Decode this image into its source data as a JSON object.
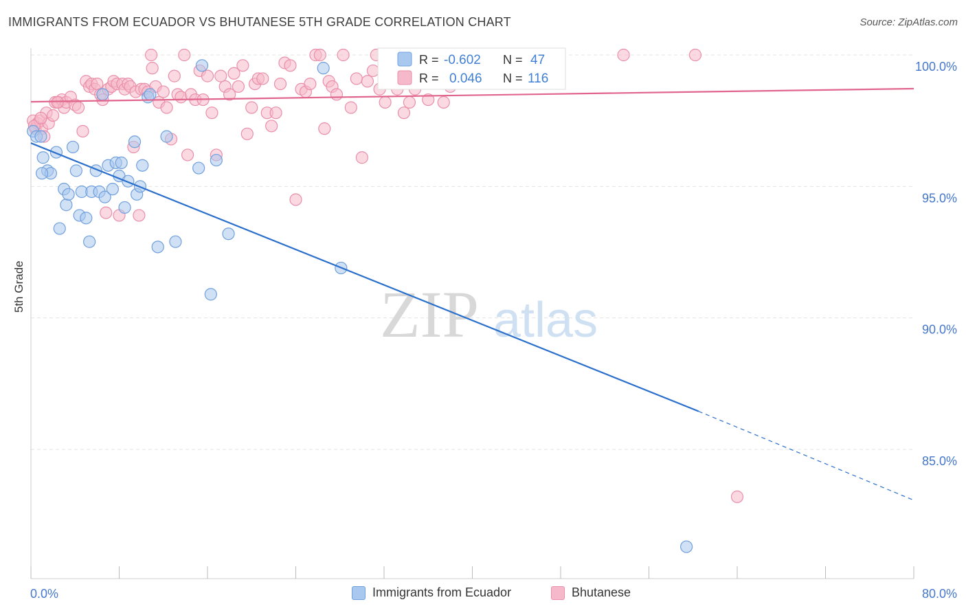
{
  "title": "IMMIGRANTS FROM ECUADOR VS BHUTANESE 5TH GRADE CORRELATION CHART",
  "source": "Source: ZipAtlas.com",
  "watermark": {
    "zip": "ZIP",
    "atlas": "atlas"
  },
  "colors": {
    "blue_fill": "#a9c8ef",
    "blue_stroke": "#6f9fdc",
    "blue_line": "#2a6fcc",
    "pink_fill": "#f6b9cb",
    "pink_stroke": "#ea8ea9",
    "pink_line": "#e0648c",
    "axis_label": "#4477cc",
    "grid": "#e3e3e3"
  },
  "legend": {
    "rows": [
      {
        "r_label": "R =",
        "r_value": "-0.602",
        "n_label": "N =",
        "n_value": "47"
      },
      {
        "r_label": "R =",
        "r_value": "0.046",
        "n_label": "N =",
        "n_value": "116"
      }
    ]
  },
  "chart_data": {
    "type": "scatter",
    "title": "IMMIGRANTS FROM ECUADOR VS BHUTANESE 5TH GRADE CORRELATION CHART",
    "xlabel": "",
    "ylabel": "5th Grade",
    "xlim": [
      0,
      80
    ],
    "ylim": [
      80.5,
      100.8
    ],
    "x_ticks": [
      "0.0%",
      "80.0%"
    ],
    "y_ticks": [
      {
        "value": 85,
        "label": "85.0%"
      },
      {
        "value": 90,
        "label": "90.0%"
      },
      {
        "value": 95,
        "label": "95.0%"
      },
      {
        "value": 100,
        "label": "100.0%"
      }
    ],
    "grid": true,
    "legend_position": "bottom",
    "series": [
      {
        "name": "Immigrants from Ecuador",
        "color": "#a9c8ef",
        "r": -0.602,
        "n": 47,
        "trend": {
          "x0": 0,
          "y0": 96.65,
          "x1": 60.5,
          "y1": 86.45,
          "dash_to_x": 80,
          "dash_to_y": 83.07
        },
        "points": [
          [
            0.2,
            97.1
          ],
          [
            0.5,
            96.9
          ],
          [
            0.9,
            96.9
          ],
          [
            1.1,
            96.1
          ],
          [
            1.5,
            95.6
          ],
          [
            1.8,
            95.5
          ],
          [
            2.3,
            96.3
          ],
          [
            2.6,
            93.4
          ],
          [
            3.0,
            94.9
          ],
          [
            3.2,
            94.3
          ],
          [
            3.4,
            94.7
          ],
          [
            3.8,
            96.5
          ],
          [
            4.1,
            95.6
          ],
          [
            4.4,
            93.9
          ],
          [
            4.6,
            94.8
          ],
          [
            5.0,
            93.8
          ],
          [
            5.3,
            92.9
          ],
          [
            5.5,
            94.8
          ],
          [
            5.9,
            95.6
          ],
          [
            6.2,
            94.8
          ],
          [
            6.5,
            98.5
          ],
          [
            6.7,
            94.6
          ],
          [
            7.0,
            95.8
          ],
          [
            7.4,
            94.9
          ],
          [
            7.7,
            95.9
          ],
          [
            8.0,
            95.4
          ],
          [
            8.2,
            95.9
          ],
          [
            8.5,
            94.2
          ],
          [
            8.8,
            95.2
          ],
          [
            9.4,
            96.7
          ],
          [
            9.6,
            94.7
          ],
          [
            9.9,
            95.0
          ],
          [
            10.1,
            95.8
          ],
          [
            10.6,
            98.4
          ],
          [
            10.8,
            98.5
          ],
          [
            11.5,
            92.7
          ],
          [
            12.3,
            96.9
          ],
          [
            13.1,
            92.9
          ],
          [
            15.2,
            95.7
          ],
          [
            15.5,
            99.6
          ],
          [
            16.3,
            90.9
          ],
          [
            16.8,
            96.0
          ],
          [
            17.9,
            93.2
          ],
          [
            26.5,
            99.5
          ],
          [
            28.1,
            91.9
          ],
          [
            59.4,
            81.3
          ],
          [
            1.0,
            95.5
          ]
        ]
      },
      {
        "name": "Bhutanese",
        "color": "#f6b9cb",
        "r": 0.046,
        "n": 116,
        "trend": {
          "x0": 0,
          "y0": 98.22,
          "x1": 80,
          "y1": 98.72
        },
        "points": [
          [
            0.2,
            97.5
          ],
          [
            0.4,
            97.2
          ],
          [
            0.6,
            97.4
          ],
          [
            0.8,
            97.5
          ],
          [
            1.0,
            97.2
          ],
          [
            1.2,
            96.9
          ],
          [
            1.4,
            97.8
          ],
          [
            1.6,
            97.4
          ],
          [
            2.0,
            97.7
          ],
          [
            2.2,
            98.2
          ],
          [
            2.5,
            98.2
          ],
          [
            2.8,
            98.3
          ],
          [
            3.0,
            98.0
          ],
          [
            3.2,
            98.2
          ],
          [
            3.6,
            98.4
          ],
          [
            4.0,
            98.1
          ],
          [
            4.3,
            98.0
          ],
          [
            4.7,
            97.1
          ],
          [
            5.0,
            99.0
          ],
          [
            5.3,
            98.8
          ],
          [
            5.5,
            98.9
          ],
          [
            5.8,
            98.7
          ],
          [
            6.0,
            98.9
          ],
          [
            6.3,
            98.5
          ],
          [
            6.5,
            98.3
          ],
          [
            6.8,
            94.0
          ],
          [
            7.0,
            98.7
          ],
          [
            7.3,
            98.8
          ],
          [
            7.5,
            99.0
          ],
          [
            7.8,
            98.9
          ],
          [
            8.0,
            93.9
          ],
          [
            8.3,
            98.9
          ],
          [
            8.5,
            98.7
          ],
          [
            8.8,
            98.9
          ],
          [
            9.0,
            98.8
          ],
          [
            9.3,
            96.5
          ],
          [
            9.5,
            98.6
          ],
          [
            9.8,
            93.9
          ],
          [
            10.0,
            98.7
          ],
          [
            10.3,
            98.7
          ],
          [
            10.6,
            98.6
          ],
          [
            10.9,
            100.0
          ],
          [
            11.0,
            99.5
          ],
          [
            11.3,
            98.8
          ],
          [
            11.6,
            98.2
          ],
          [
            12.0,
            98.6
          ],
          [
            12.3,
            98.0
          ],
          [
            12.7,
            96.8
          ],
          [
            13.0,
            99.2
          ],
          [
            13.3,
            98.5
          ],
          [
            13.6,
            98.4
          ],
          [
            13.9,
            100.0
          ],
          [
            14.2,
            96.2
          ],
          [
            14.5,
            98.5
          ],
          [
            14.9,
            98.3
          ],
          [
            15.3,
            99.4
          ],
          [
            15.6,
            98.3
          ],
          [
            16.0,
            99.2
          ],
          [
            16.4,
            97.8
          ],
          [
            16.8,
            96.2
          ],
          [
            17.2,
            99.2
          ],
          [
            17.6,
            98.8
          ],
          [
            18.0,
            98.5
          ],
          [
            18.4,
            99.3
          ],
          [
            18.8,
            98.8
          ],
          [
            19.2,
            99.6
          ],
          [
            19.6,
            97.0
          ],
          [
            20.0,
            98.0
          ],
          [
            20.3,
            98.9
          ],
          [
            20.6,
            99.1
          ],
          [
            21.0,
            99.1
          ],
          [
            21.4,
            97.8
          ],
          [
            21.8,
            97.3
          ],
          [
            22.2,
            97.8
          ],
          [
            22.6,
            98.9
          ],
          [
            23.0,
            99.7
          ],
          [
            23.5,
            99.6
          ],
          [
            24.0,
            94.5
          ],
          [
            24.5,
            98.7
          ],
          [
            24.9,
            98.6
          ],
          [
            25.3,
            98.9
          ],
          [
            25.8,
            100.0
          ],
          [
            26.2,
            100.0
          ],
          [
            26.6,
            97.2
          ],
          [
            27.0,
            99.0
          ],
          [
            27.3,
            98.8
          ],
          [
            27.7,
            98.5
          ],
          [
            28.3,
            100.0
          ],
          [
            29.0,
            98.0
          ],
          [
            29.5,
            99.1
          ],
          [
            30.0,
            96.1
          ],
          [
            30.5,
            99.0
          ],
          [
            31.0,
            99.4
          ],
          [
            31.3,
            100.0
          ],
          [
            31.6,
            98.7
          ],
          [
            32.1,
            98.2
          ],
          [
            32.6,
            99.4
          ],
          [
            33.2,
            98.7
          ],
          [
            33.8,
            97.8
          ],
          [
            34.3,
            98.2
          ],
          [
            34.8,
            98.7
          ],
          [
            35.3,
            99.5
          ],
          [
            36.0,
            98.3
          ],
          [
            36.7,
            99.4
          ],
          [
            37.4,
            98.2
          ],
          [
            38.0,
            98.8
          ],
          [
            38.6,
            99.5
          ],
          [
            39.4,
            99.6
          ],
          [
            40.4,
            100.0
          ],
          [
            42.2,
            100.0
          ],
          [
            53.7,
            100.0
          ],
          [
            60.2,
            100.0
          ],
          [
            64.0,
            83.2
          ],
          [
            0.3,
            97.3
          ],
          [
            0.9,
            97.6
          ],
          [
            2.4,
            98.2
          ]
        ]
      }
    ]
  },
  "bottom_legend": [
    "Immigrants from Ecuador",
    "Bhutanese"
  ]
}
